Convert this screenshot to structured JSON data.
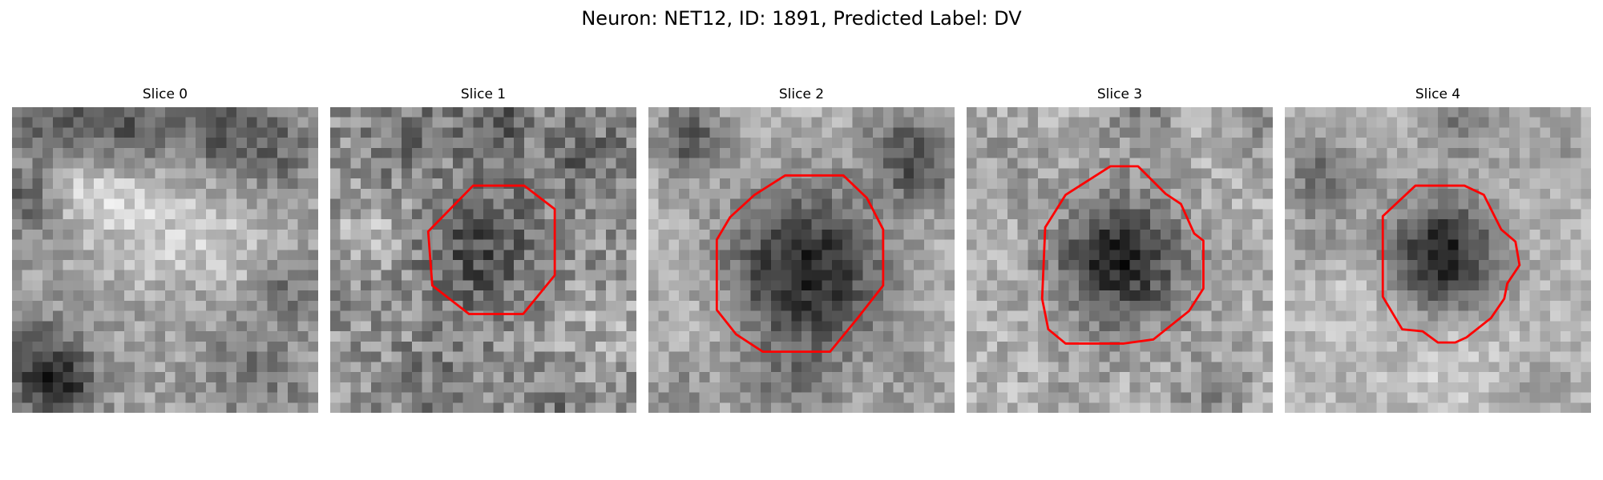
{
  "figure": {
    "title": "Neuron: NET12, ID: 1891, Predicted Label: DV",
    "contour_color": "#ff0000",
    "colormap": "gray",
    "panels": [
      {
        "label": "Slice 0",
        "has_contour": false
      },
      {
        "label": "Slice 1",
        "has_contour": true
      },
      {
        "label": "Slice 2",
        "has_contour": true
      },
      {
        "label": "Slice 3",
        "has_contour": true
      },
      {
        "label": "Slice 4",
        "has_contour": true
      }
    ]
  }
}
